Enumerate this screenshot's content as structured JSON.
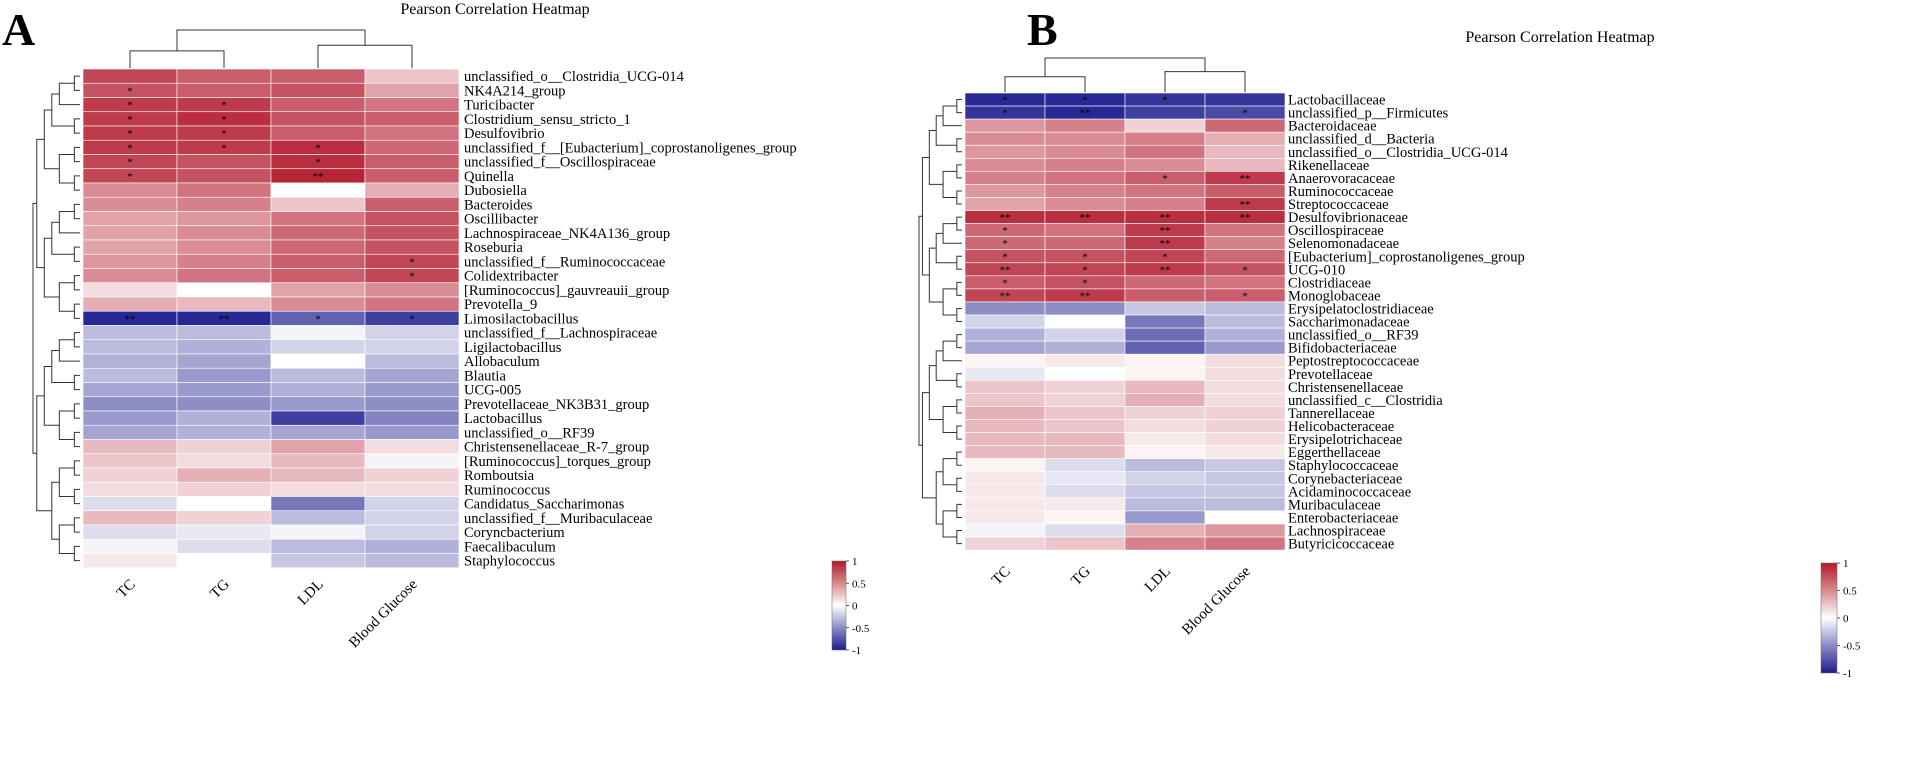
{
  "colors": {
    "low": "#1d1d8f",
    "mid": "#ffffff",
    "high": "#b2182b"
  },
  "colorbar": {
    "ticks": [
      "1",
      "0.5",
      "0",
      "-0.5",
      "-1"
    ]
  },
  "chart_data": [
    {
      "type": "heatmap",
      "panel": "A",
      "title": "Pearson Correlation Heatmap",
      "columns": [
        "TC",
        "TG",
        "LDL",
        "Blood Glucose"
      ],
      "rows": [
        "unclassified_o__Clostridia_UCG-014",
        "NK4A214_group",
        "Turicibacter",
        "Clostridium_sensu_stricto_1",
        "Desulfovibrio",
        "unclassified_f__[Eubacterium]_coprostanoligenes_group",
        "unclassified_f__Oscillospiraceae",
        "Quinella",
        "Dubosiella",
        "Bacteroides",
        "Oscillibacter",
        "Lachnospiraceae_NK4A136_group",
        "Roseburia",
        "unclassified_f__Ruminococcaceae",
        "Colidextribacter",
        "[Ruminococcus]_gauvreauii_group",
        "Prevotella_9",
        "Limosilactobacillus",
        "unclassified_f__Lachnospiraceae",
        "Ligilactobacillus",
        "Allobaculum",
        "Blautia",
        "UCG-005",
        "Prevotellaceae_NK3B31_group",
        "Lactobacillus",
        "unclassified_o__RF39",
        "Christensenellaceae_R-7_group",
        "[Ruminococcus]_torques_group",
        "Romboutsia",
        "Ruminococcus",
        "Candidatus_Saccharimonas",
        "unclassified_f__Muribaculaceae",
        "Coryncbacterium",
        "Faecalibaculum",
        "Staphylococcus"
      ],
      "values": [
        [
          0.8,
          0.7,
          0.7,
          0.25
        ],
        [
          0.75,
          0.7,
          0.75,
          0.4
        ],
        [
          0.85,
          0.85,
          0.7,
          0.6
        ],
        [
          0.85,
          0.9,
          0.75,
          0.7
        ],
        [
          0.85,
          0.85,
          0.7,
          0.6
        ],
        [
          0.85,
          0.85,
          0.9,
          0.65
        ],
        [
          0.8,
          0.75,
          0.9,
          0.7
        ],
        [
          0.8,
          0.75,
          0.95,
          0.7
        ],
        [
          0.5,
          0.6,
          0.0,
          0.35
        ],
        [
          0.5,
          0.55,
          0.25,
          0.7
        ],
        [
          0.4,
          0.45,
          0.6,
          0.75
        ],
        [
          0.4,
          0.5,
          0.65,
          0.75
        ],
        [
          0.4,
          0.5,
          0.65,
          0.75
        ],
        [
          0.45,
          0.55,
          0.7,
          0.8
        ],
        [
          0.5,
          0.6,
          0.7,
          0.8
        ],
        [
          0.15,
          0.0,
          0.4,
          0.5
        ],
        [
          0.35,
          0.3,
          0.5,
          0.6
        ],
        [
          -0.95,
          -0.95,
          -0.7,
          -0.85
        ],
        [
          -0.3,
          -0.3,
          -0.05,
          -0.2
        ],
        [
          -0.3,
          -0.35,
          -0.2,
          -0.2
        ],
        [
          -0.35,
          -0.4,
          0.0,
          -0.3
        ],
        [
          -0.3,
          -0.45,
          -0.3,
          -0.4
        ],
        [
          -0.4,
          -0.45,
          -0.35,
          -0.45
        ],
        [
          -0.5,
          -0.5,
          -0.45,
          -0.5
        ],
        [
          -0.45,
          -0.35,
          -0.85,
          -0.55
        ],
        [
          -0.4,
          -0.35,
          -0.4,
          -0.45
        ],
        [
          0.3,
          0.2,
          0.4,
          0.15
        ],
        [
          0.25,
          0.15,
          0.3,
          -0.05
        ],
        [
          0.2,
          0.35,
          0.3,
          0.2
        ],
        [
          0.15,
          0.2,
          0.15,
          0.15
        ],
        [
          -0.15,
          0.0,
          -0.6,
          -0.2
        ],
        [
          0.3,
          0.2,
          -0.3,
          -0.2
        ],
        [
          -0.15,
          -0.1,
          -0.05,
          -0.2
        ],
        [
          -0.05,
          -0.15,
          -0.3,
          -0.35
        ],
        [
          0.1,
          0.0,
          -0.25,
          -0.3
        ]
      ],
      "significance": [
        [
          "",
          "",
          "",
          ""
        ],
        [
          "*",
          "",
          "",
          ""
        ],
        [
          "*",
          "*",
          "",
          ""
        ],
        [
          "*",
          "*",
          "",
          ""
        ],
        [
          "*",
          "*",
          "",
          ""
        ],
        [
          "*",
          "*",
          "*",
          ""
        ],
        [
          "*",
          "",
          "*",
          ""
        ],
        [
          "*",
          "",
          "**",
          ""
        ],
        [
          "",
          "",
          "",
          ""
        ],
        [
          "",
          "",
          "",
          ""
        ],
        [
          "",
          "",
          "",
          ""
        ],
        [
          "",
          "",
          "",
          ""
        ],
        [
          "",
          "",
          "",
          ""
        ],
        [
          "",
          "",
          "",
          "*"
        ],
        [
          "",
          "",
          "",
          "*"
        ],
        [
          "",
          "",
          "",
          ""
        ],
        [
          "",
          "",
          "",
          ""
        ],
        [
          "**",
          "**",
          "*",
          "*"
        ],
        [
          "",
          "",
          "",
          ""
        ],
        [
          "",
          "",
          "",
          ""
        ],
        [
          "",
          "",
          "",
          ""
        ],
        [
          "",
          "",
          "",
          ""
        ],
        [
          "",
          "",
          "",
          ""
        ],
        [
          "",
          "",
          "",
          ""
        ],
        [
          "",
          "",
          "",
          ""
        ],
        [
          "",
          "",
          "",
          ""
        ],
        [
          "",
          "",
          "",
          ""
        ],
        [
          "",
          "",
          "",
          ""
        ],
        [
          "",
          "",
          "",
          ""
        ],
        [
          "",
          "",
          "",
          ""
        ],
        [
          "",
          "",
          "",
          ""
        ],
        [
          "",
          "",
          "",
          ""
        ],
        [
          "",
          "",
          "",
          ""
        ],
        [
          "",
          "",
          "",
          ""
        ],
        [
          "",
          "",
          "",
          ""
        ]
      ],
      "colorbar_range": [
        -1,
        1
      ]
    },
    {
      "type": "heatmap",
      "panel": "B",
      "title": "Pearson Correlation Heatmap",
      "columns": [
        "TC",
        "TG",
        "LDL",
        "Blood Glucose"
      ],
      "rows": [
        "Lactobacillaceae",
        "unclassified_p__Firmicutes",
        "Bacteroidaceae",
        "unclassified_d__Bacteria",
        "unclassified_o__Clostridia_UCG-014",
        "Rikenellaceae",
        "Anaerovoracaceae",
        "Ruminococcaceae",
        "Streptococcaceae",
        "Desulfovibrionaceae",
        "Oscillospiraceae",
        "Selenomonadaceae",
        "[Eubacterium]_coprostanoligenes_group",
        "UCG-010",
        "Clostridiaceae",
        "Monoglobaceae",
        "Erysipelatoclostridiaceae",
        "Saccharimonadaceae",
        "unclassified_o__RF39",
        "Bifidobacteriaceae",
        "Peptostreptococcaceae",
        "Prevotellaceae",
        "Christensenellaceae",
        "unclassified_c__Clostridia",
        "Tannerellaceae",
        "Helicobacteraceae",
        "Erysipelotrichaceae",
        "Eggerthellaceae",
        "Staphylococcaceae",
        "Corynebacteriaceae",
        "Acidaminococcaceae",
        "Muribaculaceae",
        "Enterobacteriaceae",
        "Lachnospiraceae",
        "Butyricicoccaceae"
      ],
      "values": [
        [
          -0.95,
          -0.95,
          -0.9,
          -0.9
        ],
        [
          -0.9,
          -0.95,
          -0.85,
          -0.8
        ],
        [
          0.45,
          0.55,
          0.2,
          0.65
        ],
        [
          0.5,
          0.5,
          0.55,
          0.35
        ],
        [
          0.45,
          0.5,
          0.6,
          0.3
        ],
        [
          0.5,
          0.55,
          0.5,
          0.3
        ],
        [
          0.55,
          0.6,
          0.7,
          0.85
        ],
        [
          0.45,
          0.55,
          0.6,
          0.7
        ],
        [
          0.4,
          0.5,
          0.55,
          0.85
        ],
        [
          0.9,
          0.9,
          0.9,
          0.9
        ],
        [
          0.65,
          0.6,
          0.85,
          0.6
        ],
        [
          0.65,
          0.65,
          0.85,
          0.55
        ],
        [
          0.75,
          0.75,
          0.8,
          0.65
        ],
        [
          0.8,
          0.8,
          0.85,
          0.75
        ],
        [
          0.7,
          0.75,
          0.65,
          0.6
        ],
        [
          0.8,
          0.85,
          0.7,
          0.7
        ],
        [
          -0.5,
          -0.5,
          -0.25,
          -0.3
        ],
        [
          -0.2,
          0.0,
          -0.6,
          -0.3
        ],
        [
          -0.35,
          -0.2,
          -0.65,
          -0.35
        ],
        [
          -0.4,
          -0.35,
          -0.7,
          -0.45
        ],
        [
          0.05,
          0.1,
          0.05,
          0.15
        ],
        [
          -0.1,
          0.0,
          0.05,
          0.15
        ],
        [
          0.25,
          0.2,
          0.3,
          0.15
        ],
        [
          0.25,
          0.2,
          0.35,
          0.15
        ],
        [
          0.35,
          0.25,
          0.2,
          0.2
        ],
        [
          0.3,
          0.25,
          0.15,
          0.2
        ],
        [
          0.3,
          0.3,
          0.1,
          0.15
        ],
        [
          0.3,
          0.3,
          0.05,
          0.1
        ],
        [
          0.05,
          -0.15,
          -0.3,
          -0.25
        ],
        [
          0.1,
          -0.1,
          -0.2,
          -0.25
        ],
        [
          0.1,
          -0.15,
          -0.25,
          -0.25
        ],
        [
          0.1,
          0.1,
          -0.3,
          -0.3
        ],
        [
          0.1,
          0.05,
          -0.45,
          0.0
        ],
        [
          -0.05,
          -0.15,
          0.35,
          0.45
        ],
        [
          0.2,
          0.25,
          0.55,
          0.6
        ]
      ],
      "significance": [
        [
          "*",
          "*",
          "*",
          ""
        ],
        [
          "*",
          "**",
          "",
          "*"
        ],
        [
          "",
          "",
          "",
          ""
        ],
        [
          "",
          "",
          "",
          ""
        ],
        [
          "",
          "",
          "",
          ""
        ],
        [
          "",
          "",
          "",
          ""
        ],
        [
          "",
          "",
          "*",
          "**"
        ],
        [
          "",
          "",
          "",
          ""
        ],
        [
          "",
          "",
          "",
          "**"
        ],
        [
          "**",
          "**",
          "**",
          "**"
        ],
        [
          "*",
          "",
          "**",
          ""
        ],
        [
          "*",
          "",
          "**",
          ""
        ],
        [
          "*",
          "*",
          "*",
          ""
        ],
        [
          "**",
          "*",
          "**",
          "*"
        ],
        [
          "*",
          "*",
          "",
          ""
        ],
        [
          "**",
          "**",
          "",
          "*"
        ],
        [
          "",
          "",
          "",
          ""
        ],
        [
          "",
          "",
          "",
          ""
        ],
        [
          "",
          "",
          "",
          ""
        ],
        [
          "",
          "",
          "",
          ""
        ],
        [
          "",
          "",
          "",
          ""
        ],
        [
          "",
          "",
          "",
          ""
        ],
        [
          "",
          "",
          "",
          ""
        ],
        [
          "",
          "",
          "",
          ""
        ],
        [
          "",
          "",
          "",
          ""
        ],
        [
          "",
          "",
          "",
          ""
        ],
        [
          "",
          "",
          "",
          ""
        ],
        [
          "",
          "",
          "",
          ""
        ],
        [
          "",
          "",
          "",
          ""
        ],
        [
          "",
          "",
          "",
          ""
        ],
        [
          "",
          "",
          "",
          ""
        ],
        [
          "",
          "",
          "",
          ""
        ],
        [
          "",
          "",
          "",
          ""
        ],
        [
          "",
          "",
          "",
          ""
        ],
        [
          "",
          "",
          "",
          ""
        ]
      ],
      "colorbar_range": [
        -1,
        1
      ]
    }
  ]
}
